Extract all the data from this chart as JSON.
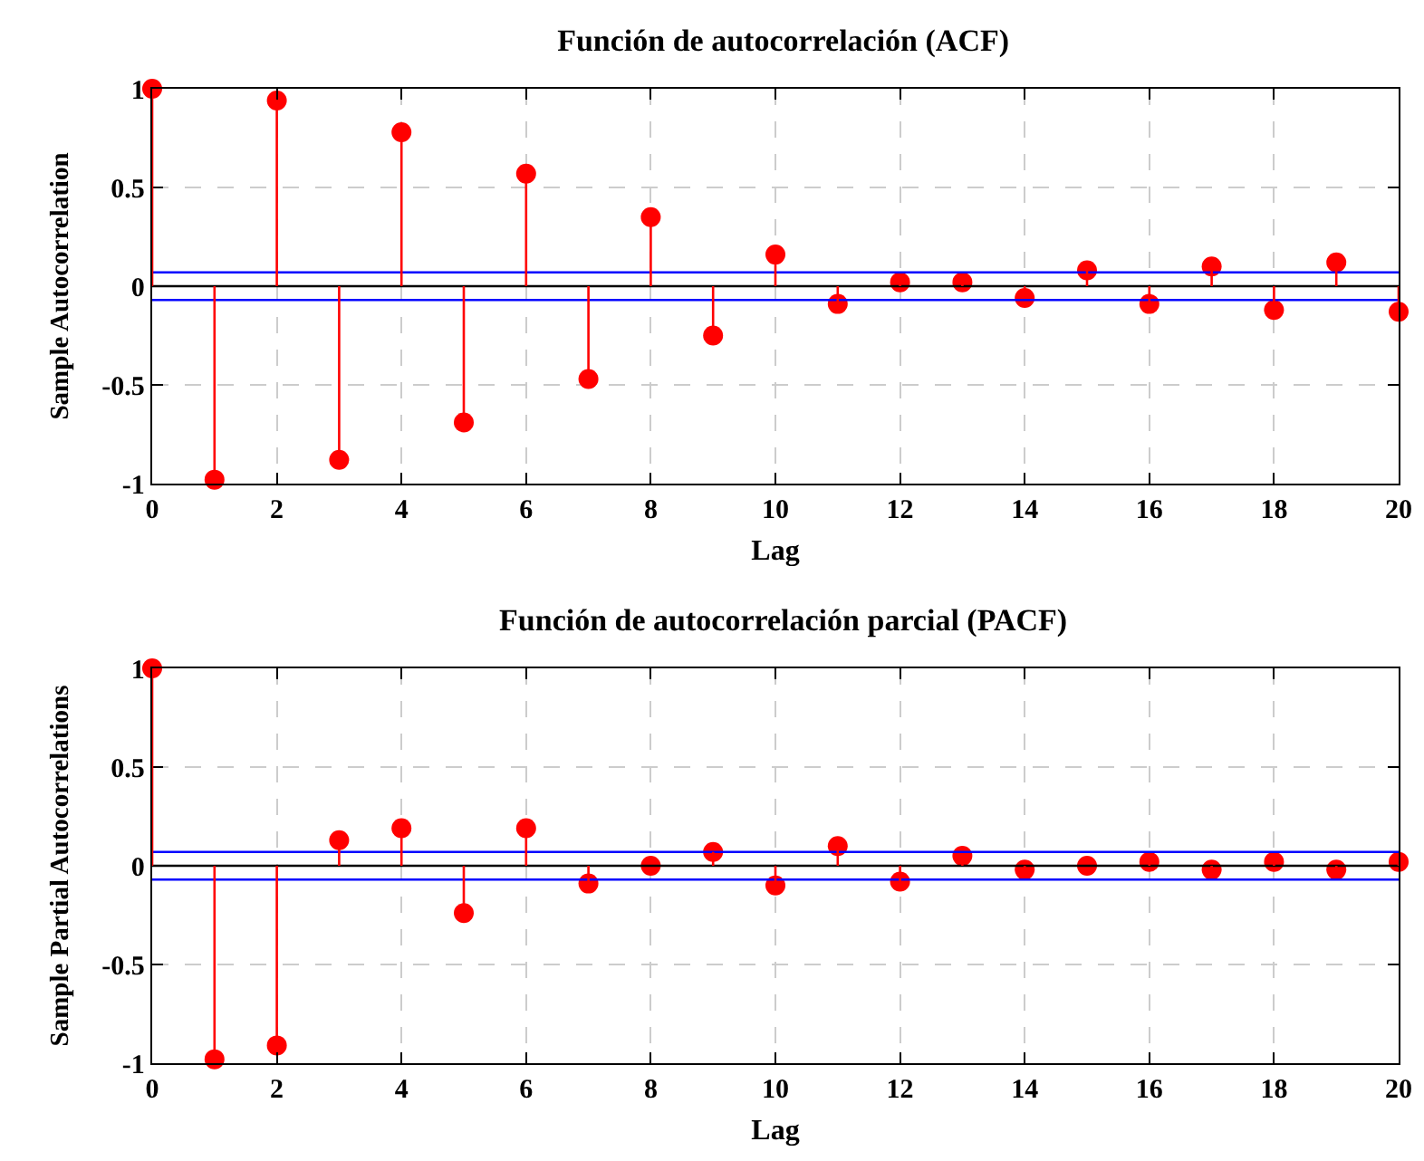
{
  "chart_data": [
    {
      "type": "lollipop",
      "title": "Función de autocorrelación (ACF)",
      "xlabel": "Lag",
      "ylabel": "Sample Autocorrelation",
      "x": [
        0,
        1,
        2,
        3,
        4,
        5,
        6,
        7,
        8,
        9,
        10,
        11,
        12,
        13,
        14,
        15,
        16,
        17,
        18,
        19,
        20
      ],
      "series": [
        {
          "color": "#ff0000",
          "values": [
            1,
            -0.98,
            0.94,
            -0.88,
            0.78,
            -0.69,
            0.57,
            -0.47,
            0.35,
            -0.25,
            0.16,
            -0.09,
            0.02,
            0.02,
            -0.06,
            0.08,
            -0.09,
            0.1,
            -0.12,
            0.12,
            -0.13
          ]
        }
      ],
      "xlim": [
        0,
        20
      ],
      "xticks": [
        0,
        2,
        4,
        6,
        8,
        10,
        12,
        14,
        16,
        18,
        20
      ],
      "ylim": [
        -1,
        1
      ],
      "yticks": [
        -1,
        -0.5,
        0,
        0.5,
        1
      ],
      "ref_lines": [
        {
          "axis": "y",
          "value": 0.07,
          "color": "#0000ff"
        },
        {
          "axis": "y",
          "value": -0.07,
          "color": "#0000ff"
        },
        {
          "axis": "y",
          "value": 0,
          "color": "#000000"
        }
      ],
      "grid": true,
      "marker": "circle"
    },
    {
      "type": "lollipop",
      "title": "Función de autocorrelación parcial (PACF)",
      "xlabel": "Lag",
      "ylabel": "Sample Partial Autocorrelations",
      "x": [
        0,
        1,
        2,
        3,
        4,
        5,
        6,
        7,
        8,
        9,
        10,
        11,
        12,
        13,
        14,
        15,
        16,
        17,
        18,
        19,
        20
      ],
      "series": [
        {
          "color": "#ff0000",
          "values": [
            1,
            -0.98,
            -0.91,
            0.13,
            0.19,
            -0.24,
            0.19,
            -0.09,
            0,
            0.07,
            -0.1,
            0.1,
            -0.08,
            0.05,
            -0.02,
            0,
            0.02,
            -0.02,
            0.02,
            -0.02,
            0.02
          ]
        }
      ],
      "xlim": [
        0,
        20
      ],
      "xticks": [
        0,
        2,
        4,
        6,
        8,
        10,
        12,
        14,
        16,
        18,
        20
      ],
      "ylim": [
        -1,
        1
      ],
      "yticks": [
        -1,
        -0.5,
        0,
        0.5,
        1
      ],
      "ref_lines": [
        {
          "axis": "y",
          "value": 0.07,
          "color": "#0000ff"
        },
        {
          "axis": "y",
          "value": -0.07,
          "color": "#0000ff"
        },
        {
          "axis": "y",
          "value": 0,
          "color": "#000000"
        }
      ],
      "grid": true,
      "marker": "circle"
    }
  ]
}
